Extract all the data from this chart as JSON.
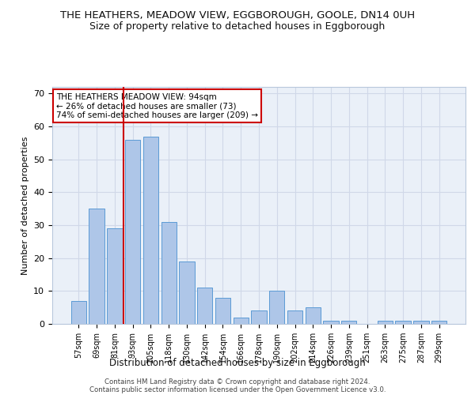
{
  "title": "THE HEATHERS, MEADOW VIEW, EGGBOROUGH, GOOLE, DN14 0UH",
  "subtitle": "Size of property relative to detached houses in Eggborough",
  "xlabel": "Distribution of detached houses by size in Eggborough",
  "ylabel": "Number of detached properties",
  "categories": [
    "57sqm",
    "69sqm",
    "81sqm",
    "93sqm",
    "105sqm",
    "118sqm",
    "130sqm",
    "142sqm",
    "154sqm",
    "166sqm",
    "178sqm",
    "190sqm",
    "202sqm",
    "214sqm",
    "226sqm",
    "239sqm",
    "251sqm",
    "263sqm",
    "275sqm",
    "287sqm",
    "299sqm"
  ],
  "values": [
    7,
    35,
    29,
    56,
    57,
    31,
    19,
    11,
    8,
    2,
    4,
    10,
    4,
    5,
    1,
    1,
    0,
    1,
    1,
    1,
    1
  ],
  "bar_color": "#aec6e8",
  "bar_edge_color": "#5b9bd5",
  "vline_x_index": 3,
  "vline_color": "#cc0000",
  "annotation_text": "THE HEATHERS MEADOW VIEW: 94sqm\n← 26% of detached houses are smaller (73)\n74% of semi-detached houses are larger (209) →",
  "annotation_box_color": "#ffffff",
  "annotation_box_edge": "#cc0000",
  "ylim": [
    0,
    72
  ],
  "yticks": [
    0,
    10,
    20,
    30,
    40,
    50,
    60,
    70
  ],
  "grid_color": "#d0d8e8",
  "background_color": "#eaf0f8",
  "footer_line1": "Contains HM Land Registry data © Crown copyright and database right 2024.",
  "footer_line2": "Contains public sector information licensed under the Open Government Licence v3.0.",
  "title_fontsize": 9.5,
  "subtitle_fontsize": 9
}
